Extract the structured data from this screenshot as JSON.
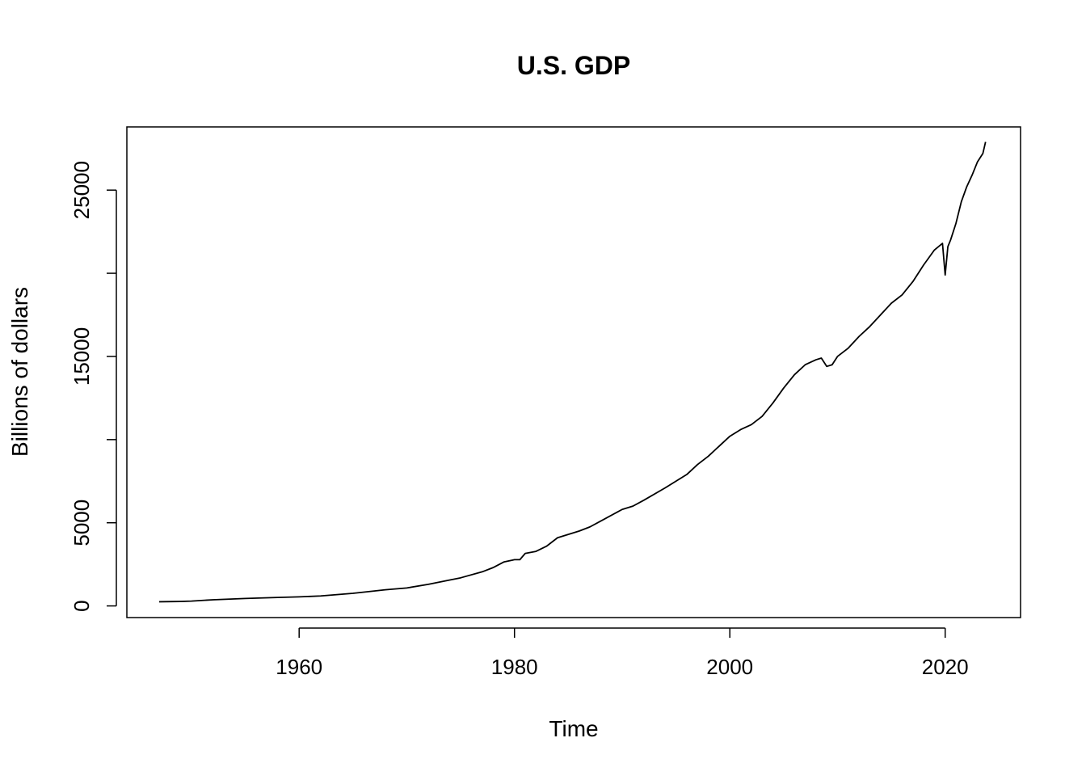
{
  "chart_data": {
    "type": "line",
    "title": "U.S. GDP",
    "xlabel": "Time",
    "ylabel": "Billions of dollars",
    "xlim": [
      1944,
      2027
    ],
    "ylim": [
      -700,
      28800
    ],
    "x_ticks": [
      1960,
      1980,
      2000,
      2020
    ],
    "x_tick_labels": [
      "1960",
      "1980",
      "2000",
      "2020"
    ],
    "y_ticks": [
      0,
      5000,
      10000,
      15000,
      20000,
      25000
    ],
    "y_tick_labels": [
      "0",
      "5000",
      "",
      "15000",
      "",
      "25000"
    ],
    "grid": false,
    "legend": "none",
    "line_color": "#000000",
    "series": [
      {
        "x": [
          1947,
          1949,
          1950,
          1952,
          1955,
          1958,
          1960,
          1962,
          1965,
          1968,
          1970,
          1972,
          1974,
          1975,
          1977,
          1978,
          1979,
          1980,
          1980.5,
          1981,
          1982,
          1983,
          1984,
          1986,
          1987,
          1988,
          1990,
          1991,
          1992,
          1994,
          1995,
          1996,
          1997,
          1998,
          1999,
          2000,
          2001,
          2002,
          2003,
          2004,
          2005,
          2006,
          2007,
          2008,
          2008.5,
          2009,
          2009.5,
          2010,
          2011,
          2012,
          2013,
          2014,
          2015,
          2016,
          2017,
          2018,
          2019,
          2019.75,
          2020,
          2020.25,
          2020.5,
          2021,
          2021.5,
          2022,
          2022.5,
          2023,
          2023.5,
          2023.75
        ],
        "y": [
          250,
          270,
          290,
          370,
          450,
          510,
          545,
          600,
          760,
          970,
          1080,
          1300,
          1560,
          1690,
          2050,
          2300,
          2640,
          2780,
          2780,
          3160,
          3280,
          3600,
          4100,
          4500,
          4750,
          5100,
          5800,
          6000,
          6350,
          7100,
          7500,
          7900,
          8500,
          9000,
          9600,
          10200,
          10600,
          10900,
          11400,
          12200,
          13100,
          13900,
          14500,
          14800,
          14900,
          14400,
          14500,
          15000,
          15500,
          16200,
          16800,
          17500,
          18200,
          18700,
          19500,
          20500,
          21400,
          21800,
          19900,
          21600,
          22000,
          23000,
          24300,
          25200,
          25900,
          26700,
          27200,
          27900
        ]
      }
    ]
  }
}
